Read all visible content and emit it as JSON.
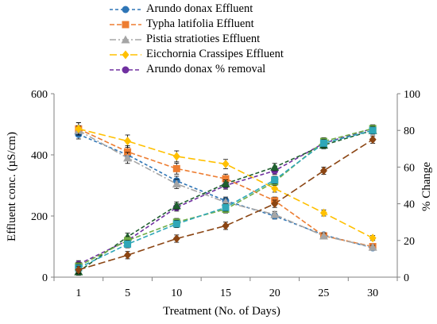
{
  "chart_data": {
    "type": "line",
    "xlabel": "Treatment (No. of Days)",
    "ylabel": "Effluent conc. (µS/cm)",
    "y2label": "% Change",
    "categories": [
      "1",
      "5",
      "10",
      "15",
      "20",
      "25",
      "30"
    ],
    "ylim": [
      0,
      600
    ],
    "yticks": [
      "0",
      "200",
      "400",
      "600"
    ],
    "y2lim": [
      0,
      100
    ],
    "y2ticks": [
      "0",
      "20",
      "40",
      "60",
      "80",
      "100"
    ],
    "grid": false,
    "legend": "top-center",
    "legend_entries": [
      {
        "name": "Arundo donax Effluent",
        "color": "#2e75b6",
        "marker": "circle",
        "dash": "4,3"
      },
      {
        "name": "Typha latifolia Effluent",
        "color": "#ed7d31",
        "marker": "square",
        "dash": "6,3"
      },
      {
        "name": "Pistia stratioties Effluent",
        "color": "#a5a5a5",
        "marker": "triangle",
        "dash": "8,3,2,3"
      },
      {
        "name": "Eicchornia Crassipes Effluent",
        "color": "#ffc000",
        "marker": "diamond",
        "dash": "9,4"
      },
      {
        "name": "Arundo donax % removal",
        "color": "#7030a0",
        "marker": "circle",
        "dash": "5,3"
      }
    ],
    "series": [
      {
        "name": "Arundo donax Effluent",
        "axis": "left",
        "color": "#2e75b6",
        "marker": "circle",
        "dash": "4,3",
        "values": [
          467,
          400,
          315,
          250,
          200,
          138,
          96
        ],
        "errors": [
          15,
          18,
          15,
          12,
          10,
          8,
          6
        ]
      },
      {
        "name": "Typha latifolia Effluent",
        "axis": "left",
        "color": "#ed7d31",
        "marker": "square",
        "dash": "6,3",
        "values": [
          485,
          410,
          355,
          322,
          250,
          135,
          100
        ],
        "errors": [
          20,
          20,
          18,
          15,
          12,
          8,
          6
        ]
      },
      {
        "name": "Pistia stratioties Effluent",
        "axis": "left",
        "color": "#a5a5a5",
        "marker": "triangle",
        "dash": "8,3,2,3",
        "values": [
          480,
          390,
          305,
          245,
          205,
          135,
          98
        ],
        "errors": [
          15,
          18,
          15,
          12,
          10,
          8,
          6
        ]
      },
      {
        "name": "Eicchornia Crassipes Effluent",
        "axis": "left",
        "color": "#ffc000",
        "marker": "diamond",
        "dash": "9,4",
        "values": [
          485,
          445,
          395,
          370,
          290,
          210,
          128
        ],
        "errors": [
          20,
          20,
          18,
          15,
          12,
          10,
          8
        ]
      },
      {
        "name": "Arundo donax % removal",
        "axis": "right",
        "color": "#7030a0",
        "marker": "circle",
        "dash": "5,3",
        "values": [
          7,
          20,
          38,
          50,
          58,
          73,
          81
        ],
        "errors": [
          2,
          2,
          2,
          2,
          2,
          2,
          2
        ]
      },
      {
        "axis": "right",
        "color": "#1f5f2f",
        "marker": "triangle",
        "dash": "5,3",
        "values": [
          3,
          22,
          39,
          51,
          60,
          72,
          80
        ],
        "errors": [
          2,
          2,
          2,
          2,
          2,
          2,
          2
        ]
      },
      {
        "axis": "right",
        "color": "#70ad47",
        "marker": "square",
        "dash": "6,3",
        "values": [
          6,
          20,
          30,
          37,
          52,
          74,
          81
        ],
        "errors": [
          2,
          2,
          2,
          2,
          2,
          2,
          2
        ]
      },
      {
        "axis": "right",
        "color": "#2fa7b8",
        "marker": "square",
        "dash": "6,3",
        "values": [
          5,
          18,
          29,
          38,
          53,
          73,
          80
        ],
        "errors": [
          2,
          2,
          2,
          2,
          2,
          2,
          2
        ]
      },
      {
        "axis": "right",
        "color": "#8b4513",
        "marker": "diamond",
        "dash": "9,4",
        "values": [
          4,
          12,
          21,
          28,
          40,
          58,
          75
        ],
        "errors": [
          2,
          2,
          2,
          2,
          2,
          2,
          2
        ]
      }
    ]
  }
}
